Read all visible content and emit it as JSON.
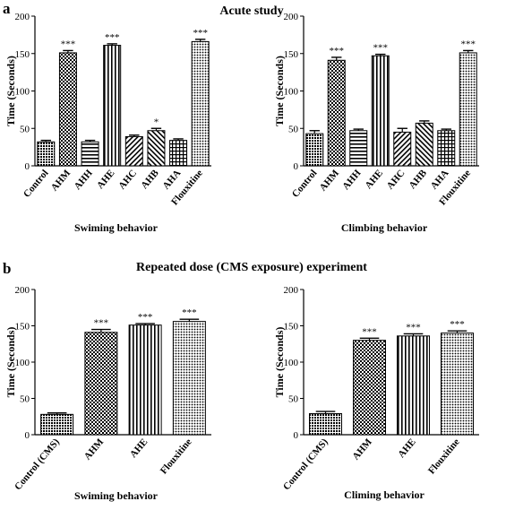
{
  "panels": [
    {
      "letter": "a",
      "title": "Acute study"
    },
    {
      "letter": "b",
      "title": "Repeated dose (CMS exposure) experiment"
    }
  ],
  "chart_data": [
    {
      "type": "bar",
      "panel": "a",
      "categories": [
        "Control",
        "AHM",
        "AHH",
        "AHE",
        "AHC",
        "AHB",
        "AHA",
        "Flouxitine"
      ],
      "values": [
        32,
        151,
        32,
        161,
        39,
        47,
        34,
        166
      ],
      "errors": [
        2,
        3,
        2,
        2,
        2,
        3,
        2,
        3
      ],
      "significance": [
        "",
        "***",
        "",
        "***",
        "",
        "*",
        "",
        "***"
      ],
      "patterns": [
        "dense",
        "checker",
        "hstripe",
        "vstripe",
        "diag",
        "diag2",
        "cross",
        "dots"
      ],
      "xlabel": "Swiming behavior",
      "ylabel": "Time (Seconds)",
      "ylim": [
        0,
        200
      ],
      "yticks": [
        0,
        50,
        100,
        150,
        200
      ]
    },
    {
      "type": "bar",
      "panel": "a",
      "categories": [
        "Control",
        "AHM",
        "AHH",
        "AHE",
        "AHC",
        "AHB",
        "AHA",
        "Flouxitine"
      ],
      "values": [
        43,
        141,
        47,
        147,
        45,
        57,
        47,
        151
      ],
      "errors": [
        4,
        4,
        2,
        2,
        5,
        3,
        2,
        3
      ],
      "significance": [
        "",
        "***",
        "",
        "***",
        "",
        "",
        "",
        "***"
      ],
      "patterns": [
        "dense",
        "checker",
        "hstripe",
        "vstripe",
        "diag",
        "diag2",
        "cross",
        "dots"
      ],
      "xlabel": "Climbing behavior",
      "ylabel": "Time (Seconds)",
      "ylim": [
        0,
        200
      ],
      "yticks": [
        0,
        50,
        100,
        150,
        200
      ]
    },
    {
      "type": "bar",
      "panel": "b",
      "categories": [
        "Control (CMS)",
        "AHM",
        "AHE",
        "Flouxitine"
      ],
      "values": [
        28,
        141,
        151,
        156
      ],
      "errors": [
        2,
        4,
        2,
        3
      ],
      "significance": [
        "",
        "***",
        "***",
        "***"
      ],
      "patterns": [
        "dense",
        "checker",
        "vstripe",
        "dots"
      ],
      "xlabel": "Swiming behavior",
      "ylabel": "Time (Seconds)",
      "ylim": [
        0,
        200
      ],
      "yticks": [
        0,
        50,
        100,
        150,
        200
      ]
    },
    {
      "type": "bar",
      "panel": "b",
      "categories": [
        "Control (CMS)",
        "AHM",
        "AHE",
        "Flouxitine"
      ],
      "values": [
        29,
        130,
        136,
        140
      ],
      "errors": [
        3,
        3,
        3,
        3
      ],
      "significance": [
        "",
        "***",
        "***",
        "***"
      ],
      "patterns": [
        "dense",
        "checker",
        "vstripe",
        "dots"
      ],
      "xlabel": "Climing behavior",
      "ylabel": "Time (Seconds)",
      "ylim": [
        0,
        200
      ],
      "yticks": [
        0,
        50,
        100,
        150,
        200
      ]
    }
  ]
}
